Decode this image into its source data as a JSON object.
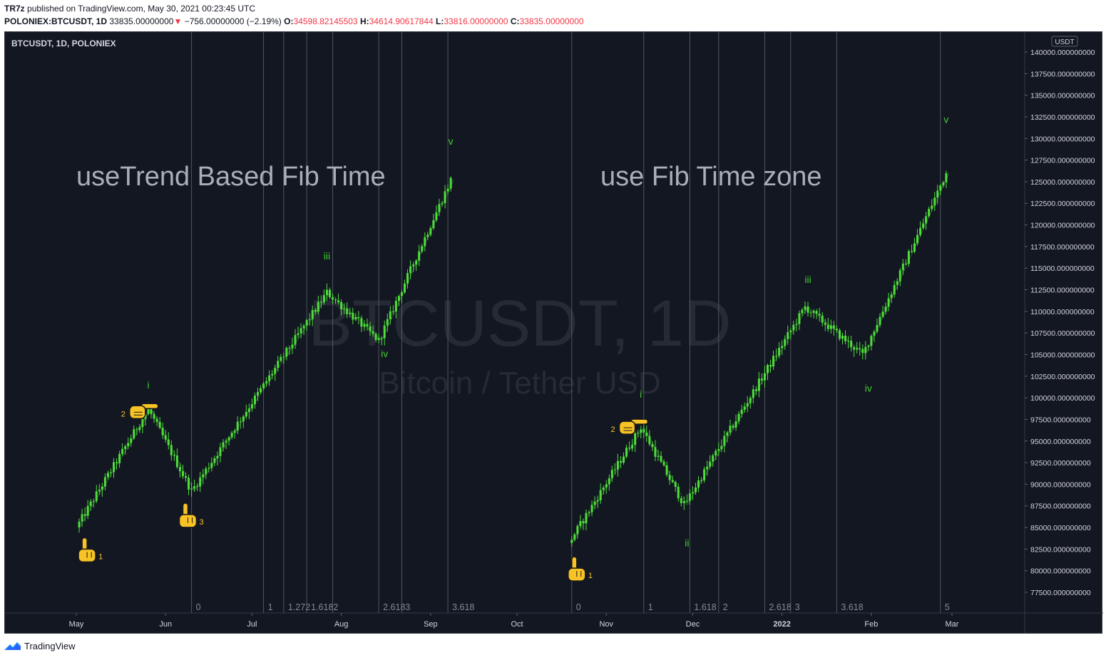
{
  "header": {
    "author": "TR7z",
    "published_text": "published on TradingView.com, May 30, 2021 00:23:45 UTC",
    "symbol": "POLONIEX:BTCUSDT, 1D",
    "last_price": "33835.00000000",
    "change": "−756.00000000 (−2.19%)",
    "open_label": "O:",
    "open": "34598.82145503",
    "high_label": "H:",
    "high": "34614.90617844",
    "low_label": "L:",
    "low": "33816.00000000",
    "close_label": "C:",
    "close": "33835.00000000"
  },
  "chart_legend": "BTCUSDT, 1D, POLONIEX",
  "currency_badge": "USDT",
  "watermark": {
    "symbol": "BTCUSDT, 1D",
    "description": "Bitcoin / Tether USD"
  },
  "colors": {
    "background": "#131722",
    "candle": "#4fde3a",
    "grid_line": "#5d606b",
    "axis_text": "#d1d4dc",
    "annotation_text": "#a9aeb8",
    "wave_label": "#3fcf2b",
    "fib_label": "#868993",
    "watermark": "#262a35",
    "hand_icon": "#f7c325",
    "negative": "#f23645"
  },
  "footer": {
    "brand": "TradingView"
  },
  "chart_data": {
    "type": "candlestick",
    "title": "",
    "ylabel": "USDT",
    "ylim": [
      75000,
      141500
    ],
    "y_ticks": [
      "140000.000000000",
      "137500.000000000",
      "135000.000000000",
      "132500.000000000",
      "130000.000000000",
      "127500.000000000",
      "125000.000000000",
      "122500.000000000",
      "120000.000000000",
      "117500.000000000",
      "115000.000000000",
      "112500.000000000",
      "110000.000000000",
      "107500.000000000",
      "105000.000000000",
      "102500.000000000",
      "100000.000000000",
      "97500.000000000",
      "95000.000000000",
      "92500.000000000",
      "90000.000000000",
      "87500.000000000",
      "85000.000000000",
      "82500.000000000",
      "80000.000000000",
      "77500.000000000"
    ],
    "x_ticks": [
      {
        "label": "May",
        "date": "2021-05-01"
      },
      {
        "label": "Jun",
        "date": "2021-06-01"
      },
      {
        "label": "Jul",
        "date": "2021-07-01"
      },
      {
        "label": "Aug",
        "date": "2021-08-01"
      },
      {
        "label": "Sep",
        "date": "2021-09-01"
      },
      {
        "label": "Oct",
        "date": "2021-10-01"
      },
      {
        "label": "Nov",
        "date": "2021-11-01"
      },
      {
        "label": "Dec",
        "date": "2021-12-01"
      },
      {
        "label": "2022",
        "date": "2022-01-01"
      },
      {
        "label": "Feb",
        "date": "2022-02-01"
      },
      {
        "label": "Mar",
        "date": "2022-03-01"
      }
    ],
    "grid": false,
    "annotations": [
      {
        "text": "useTrend Based Fib Time"
      },
      {
        "text": "use Fib Time zone"
      }
    ],
    "fib_time_lines": {
      "trend_based": [
        {
          "label": "0",
          "date": "2021-06-10"
        },
        {
          "label": "1",
          "date": "2021-07-05"
        },
        {
          "label": "1.272",
          "date": "2021-07-12"
        },
        {
          "label": "1.6182",
          "date": "2021-07-20"
        },
        {
          "label": "",
          "date": "2021-07-29"
        },
        {
          "label": "2.6183",
          "date": "2021-08-14"
        },
        {
          "label": "",
          "date": "2021-08-22"
        },
        {
          "label": "3.618",
          "date": "2021-09-07"
        }
      ],
      "time_zone": [
        {
          "label": "0",
          "date": "2021-10-20"
        },
        {
          "label": "1",
          "date": "2021-11-14"
        },
        {
          "label": "1.618",
          "date": "2021-11-30"
        },
        {
          "label": "2",
          "date": "2021-12-10"
        },
        {
          "label": "2.618",
          "date": "2021-12-26"
        },
        {
          "label": "3",
          "date": "2022-01-04"
        },
        {
          "label": "3.618",
          "date": "2022-01-20"
        },
        {
          "label": "5",
          "date": "2022-02-25"
        }
      ]
    },
    "wave_labels": [
      {
        "text": "i",
        "date": "2021-05-26",
        "y": 101100
      },
      {
        "text": "iii",
        "date": "2021-07-27",
        "y": 116000
      },
      {
        "text": "iv",
        "date": "2021-08-16",
        "y": 104700
      },
      {
        "text": "v",
        "date": "2021-09-08",
        "y": 129300
      },
      {
        "text": "i",
        "date": "2021-11-13",
        "y": 100000
      },
      {
        "text": "ii",
        "date": "2021-11-29",
        "y": 82800
      },
      {
        "text": "iii",
        "date": "2022-01-10",
        "y": 113300
      },
      {
        "text": "iv",
        "date": "2022-01-31",
        "y": 100700
      },
      {
        "text": "v",
        "date": "2022-02-27",
        "y": 131800
      }
    ],
    "pointer_marks": [
      {
        "label": "1",
        "date": "2021-05-04",
        "y": 82000,
        "dir": "up"
      },
      {
        "label": "2",
        "date": "2021-05-21",
        "y": 98500,
        "dir": "right"
      },
      {
        "label": "3",
        "date": "2021-06-08",
        "y": 86000,
        "dir": "up"
      },
      {
        "label": "1",
        "date": "2021-10-21",
        "y": 79800,
        "dir": "up"
      },
      {
        "label": "2",
        "date": "2021-11-07",
        "y": 96700,
        "dir": "right"
      }
    ],
    "series": [
      {
        "name": "",
        "kind": "candles",
        "pivots": [
          [
            "2021-05-02",
            85000
          ],
          [
            "2021-05-27",
            98700
          ],
          [
            "2021-06-11",
            89200
          ],
          [
            "2021-07-28",
            112200
          ],
          [
            "2021-08-15",
            106600
          ],
          [
            "2021-09-09",
            125200
          ]
        ]
      },
      {
        "name": "",
        "kind": "candles",
        "pivots": [
          [
            "2021-10-20",
            83200
          ],
          [
            "2021-11-14",
            96600
          ],
          [
            "2021-11-29",
            87600
          ],
          [
            "2022-01-10",
            110500
          ],
          [
            "2022-01-30",
            105000
          ],
          [
            "2022-02-28",
            126000
          ]
        ]
      }
    ]
  }
}
